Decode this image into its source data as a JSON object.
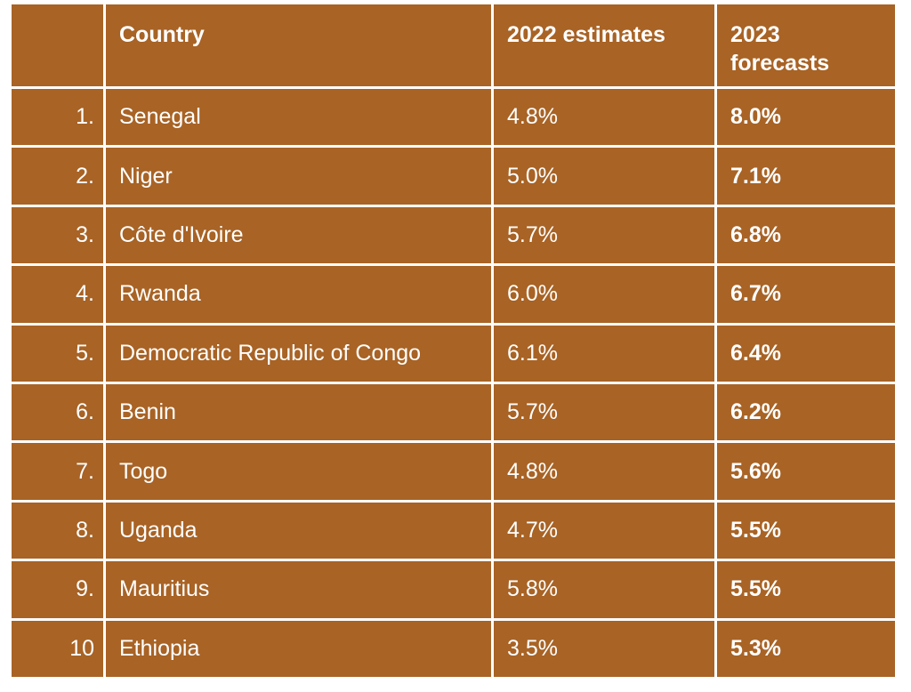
{
  "table": {
    "headers": {
      "rank": "",
      "country": "Country",
      "estimates_2022": "2022 estimates",
      "forecasts_2023": "2023 forecasts"
    },
    "rows": [
      {
        "rank": "1.",
        "country": "Senegal",
        "estimate_2022": "4.8%",
        "forecast_2023": "8.0%"
      },
      {
        "rank": "2.",
        "country": "Niger",
        "estimate_2022": "5.0%",
        "forecast_2023": "7.1%"
      },
      {
        "rank": "3.",
        "country": "Côte d'Ivoire",
        "estimate_2022": "5.7%",
        "forecast_2023": "6.8%"
      },
      {
        "rank": "4.",
        "country": "Rwanda",
        "estimate_2022": "6.0%",
        "forecast_2023": "6.7%"
      },
      {
        "rank": "5.",
        "country": "Democratic Republic of Congo",
        "estimate_2022": "6.1%",
        "forecast_2023": "6.4%"
      },
      {
        "rank": "6.",
        "country": "Benin",
        "estimate_2022": "5.7%",
        "forecast_2023": "6.2%"
      },
      {
        "rank": "7.",
        "country": "Togo",
        "estimate_2022": "4.8%",
        "forecast_2023": "5.6%"
      },
      {
        "rank": "8.",
        "country": "Uganda",
        "estimate_2022": "4.7%",
        "forecast_2023": "5.5%"
      },
      {
        "rank": "9.",
        "country": "Mauritius",
        "estimate_2022": "5.8%",
        "forecast_2023": "5.5%"
      },
      {
        "rank": "10",
        "country": "Ethiopia",
        "estimate_2022": "3.5%",
        "forecast_2023": "5.3%"
      }
    ]
  },
  "colors": {
    "cell_background": "#A86325",
    "cell_text": "#ffffff",
    "grid_lines": "#ffffff"
  }
}
